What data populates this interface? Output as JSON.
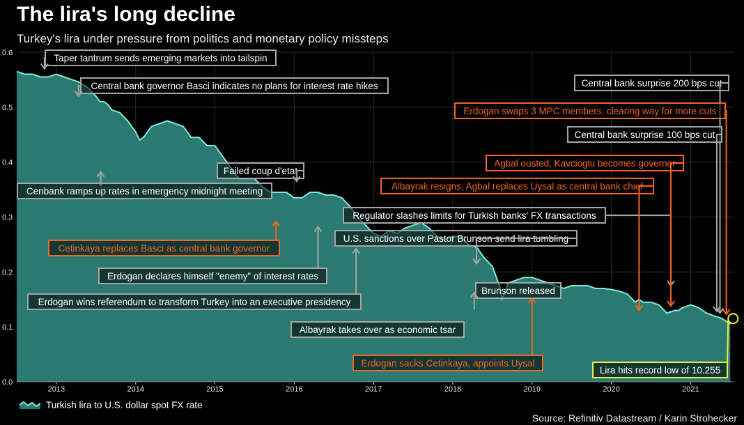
{
  "title": "The lira's long decline",
  "subtitle": "Turkey's lira under pressure from politics and monetary policy missteps",
  "source": "Source: Refinitiv Datastream / Karin Strohecker",
  "colors": {
    "background": "#000000",
    "area_fill": "#2a7a72",
    "line": "#7fe8dc",
    "grey_annotation": "#a6a6a6",
    "orange_annotation": "#f26522",
    "yellow_annotation": "#f0ee3c"
  },
  "chart_data": {
    "type": "area",
    "ylim": [
      0,
      0.6
    ],
    "xlim": [
      2012.5,
      2021.55
    ],
    "yticks": [
      "0.0",
      "0.1",
      "0.2",
      "0.3",
      "0.4",
      "0.5",
      "0.6"
    ],
    "xticks": [
      "2013",
      "2014",
      "2015",
      "2016",
      "2017",
      "2018",
      "2019",
      "2020",
      "2021"
    ],
    "legend": "Turkish lira to U.S. dollar spot FX rate",
    "series": [
      {
        "name": "Turkish lira to U.S. dollar spot FX rate",
        "x": [
          2012.5,
          2012.6,
          2012.7,
          2012.8,
          2012.9,
          2013.0,
          2013.1,
          2013.2,
          2013.3,
          2013.4,
          2013.5,
          2013.55,
          2013.6,
          2013.65,
          2013.7,
          2013.8,
          2013.9,
          2014.0,
          2014.05,
          2014.1,
          2014.2,
          2014.3,
          2014.4,
          2014.5,
          2014.6,
          2014.7,
          2014.8,
          2014.9,
          2015.0,
          2015.1,
          2015.2,
          2015.3,
          2015.4,
          2015.5,
          2015.6,
          2015.7,
          2015.8,
          2015.9,
          2016.0,
          2016.1,
          2016.2,
          2016.3,
          2016.4,
          2016.5,
          2016.6,
          2016.7,
          2016.8,
          2016.9,
          2017.0,
          2017.1,
          2017.2,
          2017.3,
          2017.4,
          2017.5,
          2017.6,
          2017.7,
          2017.8,
          2017.9,
          2018.0,
          2018.1,
          2018.2,
          2018.3,
          2018.4,
          2018.5,
          2018.6,
          2018.62,
          2018.7,
          2018.8,
          2018.9,
          2019.0,
          2019.1,
          2019.2,
          2019.3,
          2019.4,
          2019.5,
          2019.6,
          2019.7,
          2019.8,
          2019.9,
          2020.0,
          2020.1,
          2020.2,
          2020.3,
          2020.35,
          2020.4,
          2020.5,
          2020.6,
          2020.7,
          2020.8,
          2020.85,
          2020.9,
          2021.0,
          2021.1,
          2021.2,
          2021.3,
          2021.4,
          2021.5
        ],
        "values": [
          0.565,
          0.56,
          0.56,
          0.555,
          0.555,
          0.56,
          0.555,
          0.55,
          0.545,
          0.535,
          0.52,
          0.51,
          0.51,
          0.505,
          0.495,
          0.49,
          0.475,
          0.455,
          0.44,
          0.445,
          0.465,
          0.47,
          0.475,
          0.47,
          0.465,
          0.445,
          0.445,
          0.43,
          0.43,
          0.41,
          0.39,
          0.37,
          0.37,
          0.37,
          0.355,
          0.345,
          0.345,
          0.345,
          0.335,
          0.335,
          0.345,
          0.345,
          0.34,
          0.34,
          0.335,
          0.32,
          0.3,
          0.285,
          0.27,
          0.265,
          0.275,
          0.27,
          0.28,
          0.285,
          0.29,
          0.28,
          0.265,
          0.26,
          0.265,
          0.265,
          0.25,
          0.245,
          0.225,
          0.21,
          0.17,
          0.15,
          0.18,
          0.185,
          0.19,
          0.19,
          0.185,
          0.18,
          0.175,
          0.17,
          0.175,
          0.175,
          0.175,
          0.17,
          0.17,
          0.168,
          0.165,
          0.16,
          0.145,
          0.15,
          0.145,
          0.145,
          0.14,
          0.125,
          0.13,
          0.13,
          0.135,
          0.14,
          0.135,
          0.125,
          0.12,
          0.115,
          0.105
        ]
      }
    ],
    "annotations": [
      {
        "text": "Taper tantrum sends emerging markets into tailspin",
        "color": "grey",
        "target_x": 2012.85,
        "target_y": 0.56
      },
      {
        "text": "Central bank governor Basci indicates no plans for interest rate hikes",
        "color": "grey",
        "target_x": 2013.28,
        "target_y": 0.51
      },
      {
        "text": "Cenbank ramps up rates in emergency midnight meeting",
        "color": "grey",
        "target_x": 2013.56,
        "target_y": 0.395
      },
      {
        "text": "Failed coup d'etat",
        "color": "grey",
        "target_x": 2016.03,
        "target_y": 0.355
      },
      {
        "text": "Cetinkaya replaces Basci as central bank governor",
        "color": "orange",
        "target_x": 2015.77,
        "target_y": 0.305
      },
      {
        "text": "Erdogan declares himself \"enemy\" of interest rates",
        "color": "grey",
        "target_x": 2016.3,
        "target_y": 0.295
      },
      {
        "text": "Erdogan wins referendum to transform Turkey into an executive presidency",
        "color": "grey",
        "target_x": 2016.78,
        "target_y": 0.255
      },
      {
        "text": "Regulator slashes limits for Turkish banks' FX transactions",
        "color": "grey",
        "target_x": 2020.75,
        "target_y": 0.165
      },
      {
        "text": "U.S. sanctions over Pastor Brunson send lira tumbling",
        "color": "grey",
        "target_x": 2018.3,
        "target_y": 0.205
      },
      {
        "text": "Brunson released",
        "color": "grey",
        "target_x": 2018.27,
        "target_y": 0.175
      },
      {
        "text": "Albayrak takes over as economic tsar",
        "color": "grey",
        "target_x": 2017.97,
        "target_y": 0.2
      },
      {
        "text": "Erdogan sacks Cetinkaya, appoints Uysal",
        "color": "orange",
        "target_x": 2019.0,
        "target_y": 0.165
      },
      {
        "text": "Central bank surprise 200 bps cut",
        "color": "grey",
        "target_x": 2021.37,
        "target_y": 0.115
      },
      {
        "text": "Erdogan swaps 3 MPC members, clearing way for more cuts",
        "color": "orange",
        "target_x": 2021.45,
        "target_y": 0.113
      },
      {
        "text": "Central bank surprise 100 bps cut",
        "color": "grey",
        "target_x": 2021.33,
        "target_y": 0.118
      },
      {
        "text": "Agbal ousted, Kavcioglu becomes governor",
        "color": "orange",
        "target_x": 2020.75,
        "target_y": 0.128
      },
      {
        "text": "Albayrak resigns, Agbal replaces Uysal as central bank chief",
        "color": "orange",
        "target_x": 2020.35,
        "target_y": 0.12
      },
      {
        "text": "Lira hits record low of 10.255",
        "color": "yellow",
        "target_x": 2021.5,
        "target_y": 0.105
      }
    ]
  }
}
